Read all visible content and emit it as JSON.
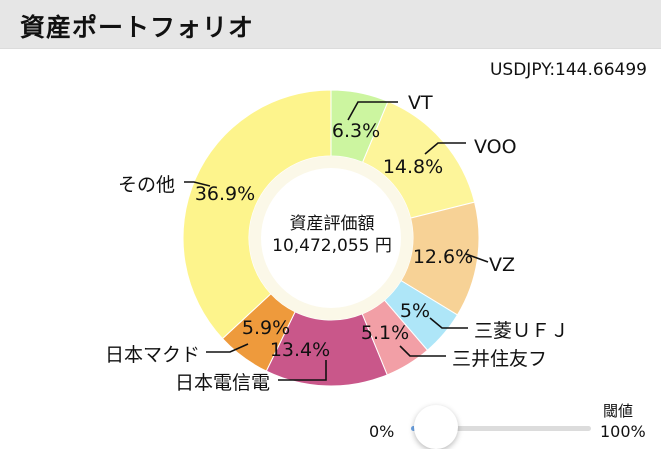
{
  "header": {
    "title": "資産ポートフォリオ"
  },
  "rate": {
    "text": "USDJPY:144.66499"
  },
  "center": {
    "caption": "資産評価額",
    "value": "10,472,055 円"
  },
  "threshold": {
    "label": "閾値",
    "min_label": "0%",
    "max_label": "100%",
    "value": 0
  },
  "chart_data": {
    "type": "pie",
    "donut": true,
    "title": "",
    "start_angle_deg": 0,
    "direction": "clockwise",
    "slices": [
      {
        "name": "VT",
        "value": 6.3,
        "label": "6.3%",
        "color": "#ccf5a0"
      },
      {
        "name": "VOO",
        "value": 14.8,
        "label": "14.8%",
        "color": "#fdf59a"
      },
      {
        "name": "VZ",
        "value": 12.6,
        "label": "12.6%",
        "color": "#f7d296"
      },
      {
        "name": "三菱ＵＦＪ",
        "value": 5.0,
        "label": "5%",
        "color": "#aee6f8"
      },
      {
        "name": "三井住友フ",
        "value": 5.1,
        "label": "5.1%",
        "color": "#f29fa6"
      },
      {
        "name": "日本電信電",
        "value": 13.4,
        "label": "13.4%",
        "color": "#c9578a"
      },
      {
        "name": "日本マクド",
        "value": 5.9,
        "label": "5.9%",
        "color": "#ee9a3c"
      },
      {
        "name": "その他",
        "value": 36.9,
        "label": "36.9%",
        "color": "#fdf48c"
      }
    ]
  }
}
